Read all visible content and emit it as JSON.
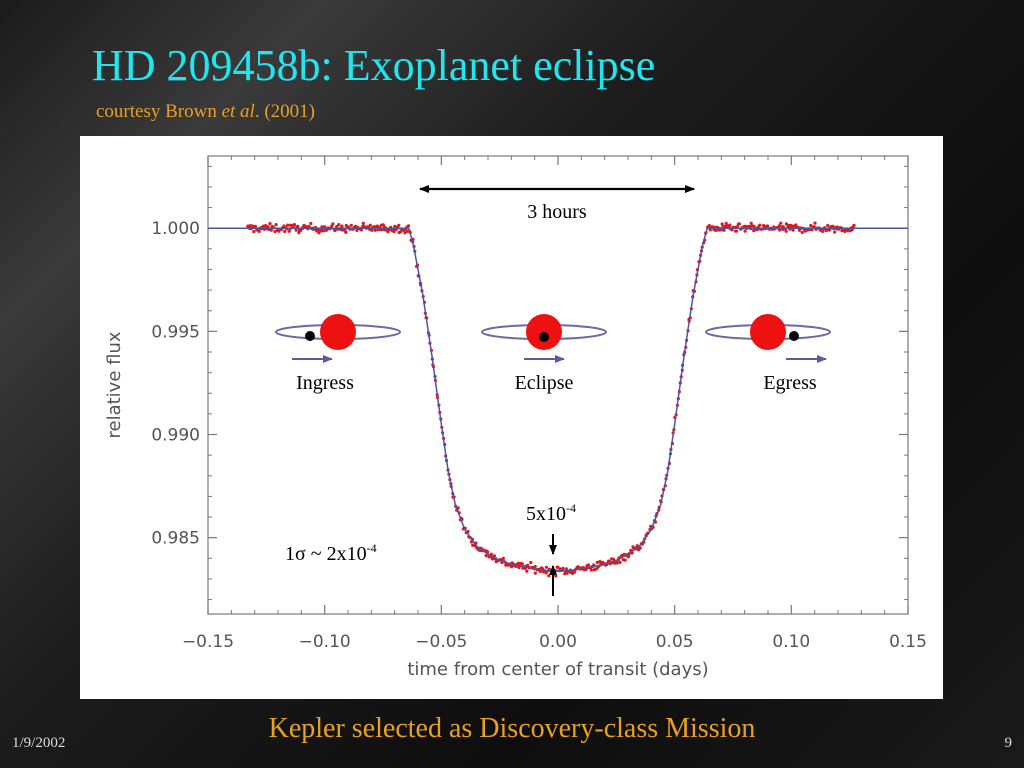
{
  "slide": {
    "title": "HD 209458b: Exoplanet eclipse",
    "subtitle_prefix": "courtesy Brown ",
    "subtitle_italic": "et al",
    "subtitle_suffix": ". (2001)",
    "footer_main": "Kepler selected as Discovery-class Mission",
    "footer_date": "1/9/2002",
    "footer_page": "9",
    "colors": {
      "title": "#21e6f0",
      "subtitle": "#e8a020",
      "footer": "#e8a020",
      "data_points": "#e01818",
      "model_curve": "#4a55a8",
      "planet": "#ee1111",
      "orbit": "#6a6aa8"
    }
  },
  "chart_data": {
    "type": "scatter",
    "xlabel": "time from center of transit (days)",
    "ylabel": "relative flux",
    "xlim": [
      -0.15,
      0.15
    ],
    "ylim": [
      0.9813,
      1.0035
    ],
    "xticks": [
      -0.15,
      -0.1,
      -0.05,
      0.0,
      0.05,
      0.1,
      0.15
    ],
    "xtick_labels": [
      "−0.15",
      "−0.10",
      "−0.05",
      "0.00",
      "0.05",
      "0.10",
      "0.15"
    ],
    "yticks": [
      1.0,
      0.995,
      0.99,
      0.985
    ],
    "ytick_labels": [
      "1.000",
      "0.995",
      "0.990",
      "0.985"
    ],
    "data_range": [
      -0.133,
      0.127
    ],
    "model": {
      "name": "transit model",
      "x": [
        -0.15,
        -0.064,
        -0.062,
        -0.058,
        -0.054,
        -0.05,
        -0.047,
        -0.044,
        -0.04,
        -0.035,
        -0.03,
        -0.025,
        -0.02,
        -0.015,
        -0.01,
        -0.005,
        0.0,
        0.005,
        0.01,
        0.015,
        0.02,
        0.025,
        0.03,
        0.035,
        0.04,
        0.044,
        0.047,
        0.05,
        0.054,
        0.058,
        0.062,
        0.064,
        0.15
      ],
      "y": [
        1.0,
        1.0,
        0.9992,
        0.9968,
        0.9938,
        0.9905,
        0.9882,
        0.9866,
        0.9854,
        0.9846,
        0.9842,
        0.9839,
        0.9837,
        0.9836,
        0.9835,
        0.9834,
        0.9834,
        0.9834,
        0.9835,
        0.9836,
        0.9837,
        0.9839,
        0.9842,
        0.9846,
        0.9854,
        0.9866,
        0.9882,
        0.9905,
        0.9938,
        0.9968,
        0.9992,
        1.0,
        1.0
      ]
    },
    "annotations": {
      "duration": "3 hours",
      "depth_base": "5x10",
      "depth_exp": "-4",
      "noise_base": "1σ ~ 2x10",
      "noise_exp": "-4",
      "ingress": "Ingress",
      "eclipse": "Eclipse",
      "egress": "Egress"
    }
  }
}
